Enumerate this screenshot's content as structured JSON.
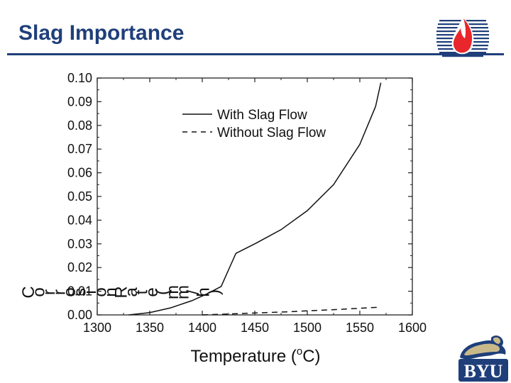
{
  "slide": {
    "title": "Slag Importance",
    "colors": {
      "title": "#1f3f7a",
      "flame": "#e8262b",
      "logo_navy": "#1f3f7a"
    },
    "logos": [
      "flame-logo",
      "byu-cougar-logo"
    ]
  },
  "chart_data": {
    "type": "line",
    "title": "",
    "xlabel": "Temperature (oC)",
    "ylabel": "Corrosion Rate (mm/h)",
    "xlim": [
      1300,
      1600
    ],
    "ylim": [
      0.0,
      0.1
    ],
    "xticks": [
      "1300",
      "1350",
      "1400",
      "1450",
      "1500",
      "1550",
      "1600"
    ],
    "yticks": [
      "0.00",
      "0.01",
      "0.02",
      "0.03",
      "0.04",
      "0.05",
      "0.06",
      "0.07",
      "0.08",
      "0.09",
      "0.10"
    ],
    "grid": false,
    "legend_position": "top-center",
    "series": [
      {
        "name": "With Slag Flow",
        "style": "solid",
        "x": [
          1330,
          1350,
          1370,
          1390,
          1405,
          1418,
          1425,
          1432,
          1450,
          1475,
          1500,
          1525,
          1550,
          1565,
          1570
        ],
        "y": [
          0.0,
          0.001,
          0.003,
          0.006,
          0.009,
          0.012,
          0.019,
          0.026,
          0.03,
          0.036,
          0.044,
          0.055,
          0.072,
          0.088,
          0.098
        ]
      },
      {
        "name": "Without Slag Flow",
        "style": "dashed",
        "x": [
          1400,
          1420,
          1450,
          1480,
          1500,
          1530,
          1550,
          1570
        ],
        "y": [
          0.0,
          0.0003,
          0.0008,
          0.0013,
          0.0017,
          0.0023,
          0.0028,
          0.0033
        ]
      }
    ]
  }
}
